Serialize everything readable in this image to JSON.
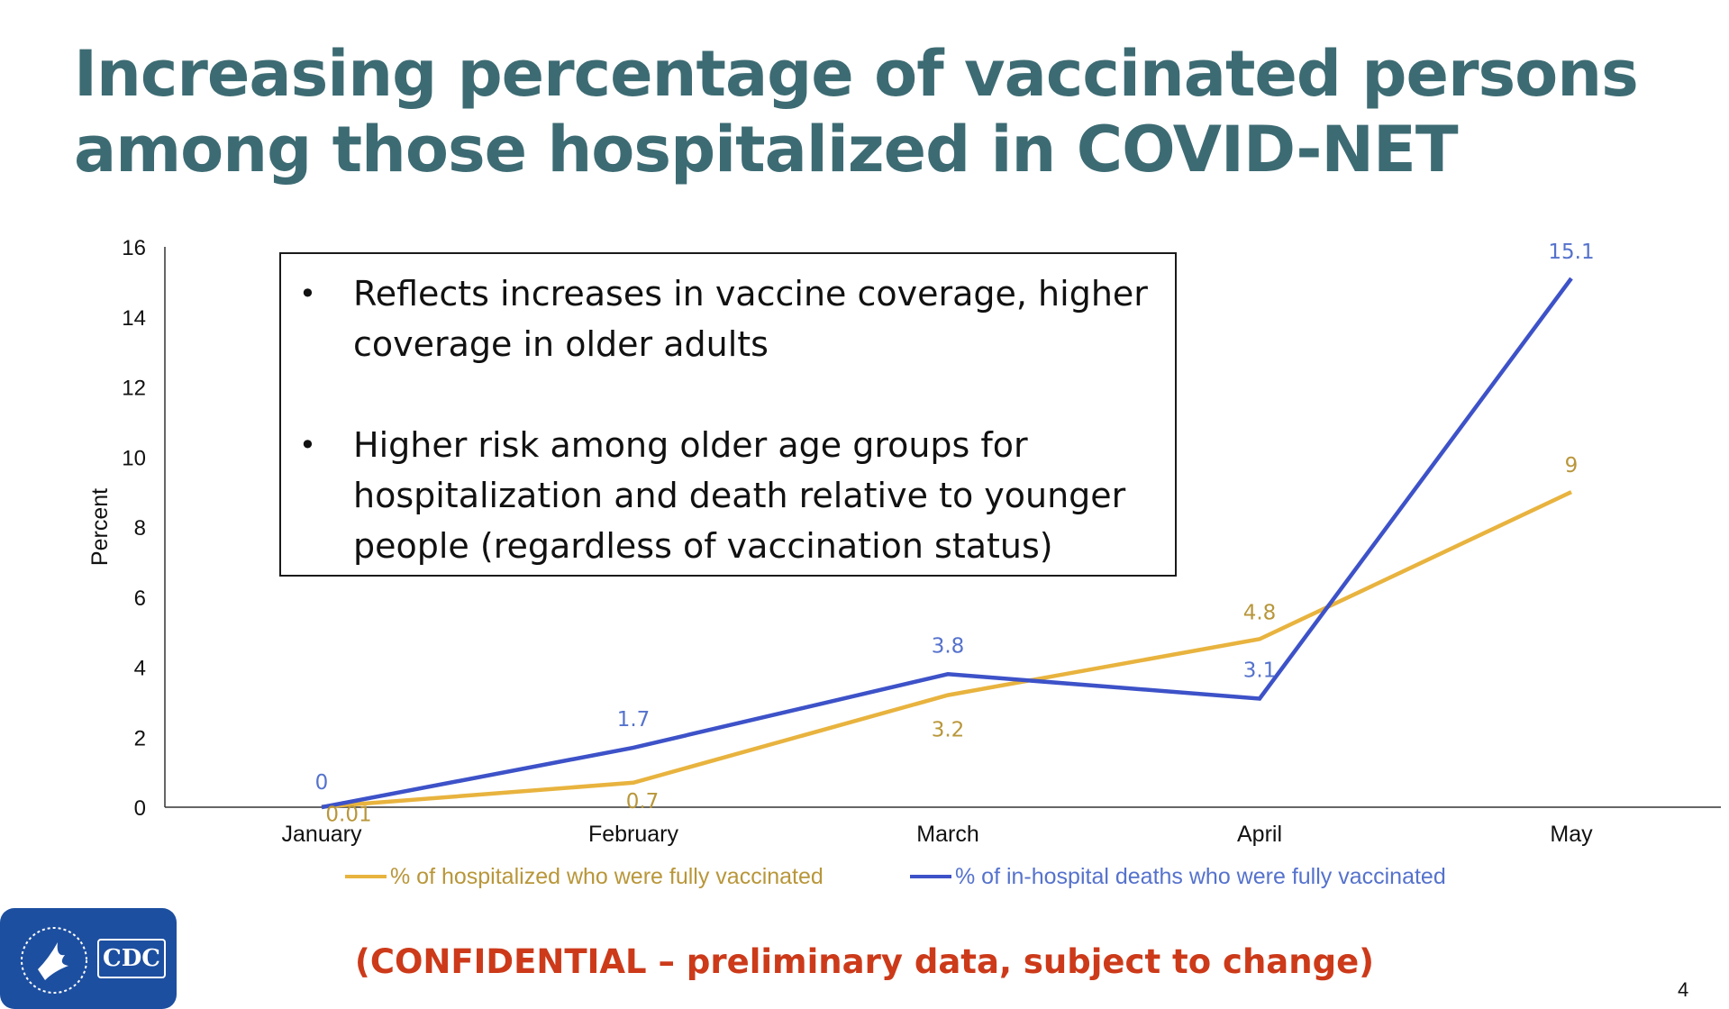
{
  "slide": {
    "title_lines": [
      "Increasing percentage of vaccinated persons",
      "among those hospitalized in COVID-NET"
    ],
    "bullets": [
      "Reflects increases in vaccine coverage, higher coverage in older adults",
      "Higher risk among older age groups for hospitalization and death relative to younger people (regardless of vaccination status)"
    ],
    "bullet_symbol": "•",
    "confidential": "(CONFIDENTIAL – preliminary data, subject to change)",
    "page_number": "4",
    "logo_text": "CDC"
  },
  "chart_data": {
    "type": "line",
    "categories": [
      "January",
      "February",
      "March",
      "April",
      "May"
    ],
    "ylabel": "Percent",
    "ylim": [
      0,
      16
    ],
    "yticks": [
      0,
      2,
      4,
      6,
      8,
      10,
      12,
      14,
      16
    ],
    "grid": false,
    "legend_position": "bottom",
    "series": [
      {
        "name": "% of hospitalized who were fully vaccinated",
        "values": [
          0.01,
          0.7,
          3.2,
          4.8,
          9
        ],
        "labels": [
          "0.01",
          "0.7",
          "3.2",
          "4.8",
          "9"
        ],
        "color": "#e8b33e",
        "label_color": "#b8963a"
      },
      {
        "name": "% of in-hospital deaths who were fully vaccinated",
        "values": [
          0,
          1.7,
          3.8,
          3.1,
          15.1
        ],
        "labels": [
          "0",
          "1.7",
          "3.8",
          "3.1",
          "15.1"
        ],
        "color": "#3d52c8",
        "label_color": "#5572cc"
      }
    ]
  }
}
